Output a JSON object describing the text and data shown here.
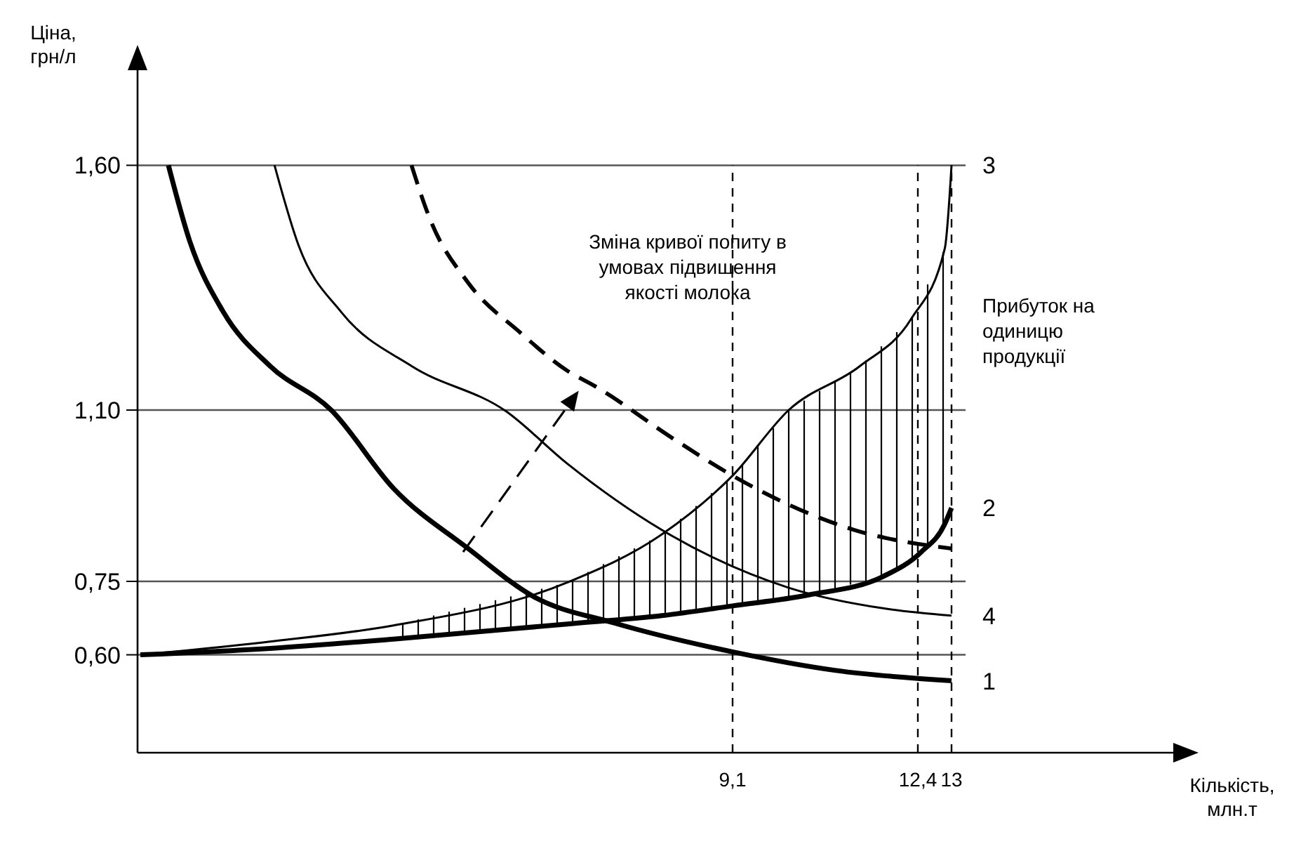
{
  "chart_data": {
    "type": "line",
    "xlabel": "Кількість, млн.т",
    "ylabel": "Ціна, грн/л",
    "xlim": [
      -1.5,
      17
    ],
    "ylim": [
      0.4,
      1.8
    ],
    "xticks": [
      {
        "value": 9.1,
        "label": "9,1"
      },
      {
        "value": 12.4,
        "label": "12,4"
      },
      13
    ],
    "yticks": [
      {
        "value": 0.6,
        "label": "0,60"
      },
      {
        "value": 0.75,
        "label": "0,75"
      },
      {
        "value": 1.1,
        "label": "1,10"
      },
      {
        "value": 1.6,
        "label": "1,60"
      }
    ],
    "grid": false,
    "marker": "none",
    "series": [
      {
        "name": "1",
        "color": "#000000",
        "x": [
          -0.95,
          -0.57,
          0.03,
          0.86,
          1.95,
          3.06,
          4.39,
          5.57,
          6.99,
          9.1,
          10.94,
          13
        ],
        "values": [
          1.6,
          1.445,
          1.3,
          1.19,
          1.1,
          0.94,
          0.817,
          0.718,
          0.665,
          0.606,
          0.568,
          0.547
        ]
      },
      {
        "name": "2",
        "color": "#000000",
        "x": [
          -1.45,
          0.86,
          3.06,
          6.16,
          7.84,
          9.1,
          10.44,
          11.78,
          12.46,
          12.87,
          13
        ],
        "values": [
          0.6,
          0.613,
          0.632,
          0.663,
          0.68,
          0.7,
          0.722,
          0.76,
          0.81,
          0.865,
          0.9
        ]
      },
      {
        "name": "3",
        "color": "#000000",
        "x": [
          -1.45,
          0.86,
          3.06,
          6.16,
          7.84,
          9.1,
          10.1,
          11.37,
          12.28,
          12.88,
          13
        ],
        "values": [
          0.6,
          0.627,
          0.66,
          0.748,
          0.846,
          0.966,
          1.1,
          1.19,
          1.286,
          1.43,
          1.6
        ]
      },
      {
        "name": "4",
        "color": "#000000",
        "x": [
          0.94,
          1.37,
          2.13,
          3.38,
          5.07,
          6.16,
          7.84,
          10.1,
          11.78,
          13
        ],
        "values": [
          1.6,
          1.436,
          1.3,
          1.19,
          1.097,
          0.99,
          0.855,
          0.737,
          0.695,
          0.68
        ]
      },
      {
        "color": "#000000",
        "line_style": "dashed",
        "x": [
          3.38,
          3.71,
          4.39,
          5.32,
          6.16,
          6.66,
          8.09,
          9.1,
          9.68,
          11.27,
          13
        ],
        "values": [
          1.6,
          1.49,
          1.36,
          1.258,
          1.18,
          1.148,
          1.038,
          0.966,
          0.93,
          0.855,
          0.817
        ]
      }
    ],
    "ref_lines": [
      {
        "axis": "y",
        "value": 1.6,
        "color": "#555555"
      },
      {
        "axis": "y",
        "value": 1.1,
        "color": "#555555"
      },
      {
        "axis": "y",
        "value": 0.75,
        "color": "#555555"
      },
      {
        "axis": "y",
        "value": 0.6,
        "color": "#555555"
      },
      {
        "axis": "x",
        "value": 9.1,
        "color": "#000000",
        "line_style": "dashed"
      },
      {
        "axis": "x",
        "value": 12.4,
        "color": "#000000",
        "line_style": "dashed"
      },
      {
        "axis": "x",
        "value": 13,
        "color": "#000000",
        "line_style": "dashed"
      }
    ],
    "annotations": [
      "Зміна кривої попиту в умовах підвищення якості молока",
      "Прибуток на одиницю продукції"
    ]
  }
}
